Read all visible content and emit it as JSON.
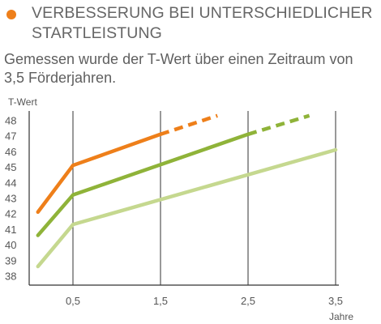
{
  "header": {
    "title_line1": "VERBESSERUNG BEI UNTERSCHIEDLICHER",
    "title_line2": "STARTLEISTUNG",
    "subtitle_line1": "Gemessen wurde der T-Wert über einen Zeitraum von",
    "subtitle_line2": "3,5 Förderjahren."
  },
  "colors": {
    "bullet": "#ee7f1a",
    "text": "#666666",
    "axis": "#333333",
    "grid": "#333333"
  },
  "chart_data": {
    "type": "line",
    "ylabel": "T-Wert",
    "xlabel": "Jahre",
    "xlim": [
      0,
      3.5
    ],
    "ylim": [
      37.4,
      48.6
    ],
    "x_ticks": [
      {
        "value": 0.5,
        "label": "0,5"
      },
      {
        "value": 1.5,
        "label": "1,5"
      },
      {
        "value": 2.5,
        "label": "2,5"
      },
      {
        "value": 3.5,
        "label": "3,5"
      }
    ],
    "y_ticks": [
      38,
      39,
      40,
      41,
      42,
      43,
      44,
      45,
      46,
      47,
      48
    ],
    "vertical_grid_at": [
      0.5,
      1.5,
      2.5,
      3.5
    ],
    "series": [
      {
        "color": "#ee7f1a",
        "solid": [
          [
            0.1,
            42.1
          ],
          [
            0.5,
            45.1
          ],
          [
            1.5,
            47.1
          ]
        ],
        "dashed": [
          [
            1.5,
            47.1
          ],
          [
            2.15,
            48.3
          ]
        ]
      },
      {
        "color": "#8fb339",
        "solid": [
          [
            0.1,
            40.6
          ],
          [
            0.5,
            43.2
          ],
          [
            2.5,
            47.1
          ]
        ],
        "dashed": [
          [
            2.5,
            47.1
          ],
          [
            3.2,
            48.3
          ]
        ]
      },
      {
        "color": "#c5d88f",
        "solid": [
          [
            0.1,
            38.6
          ],
          [
            0.5,
            41.3
          ],
          [
            3.5,
            46.1
          ]
        ],
        "dashed": []
      }
    ]
  }
}
